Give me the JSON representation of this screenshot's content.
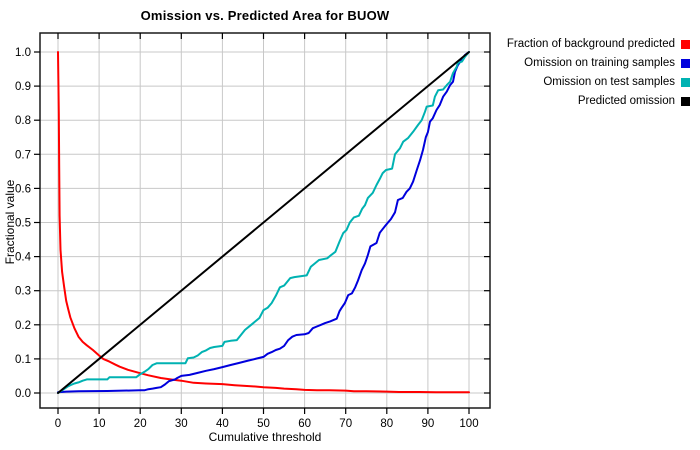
{
  "chart_data": {
    "type": "line",
    "title": "Omission vs. Predicted Area for BUOW",
    "xlabel": "Cumulative threshold",
    "ylabel": "Fractional value",
    "xlim": [
      0,
      100
    ],
    "ylim": [
      0,
      1
    ],
    "grid": true,
    "legend_position": "outside-top-right",
    "xticks": [
      0,
      10,
      20,
      30,
      40,
      50,
      60,
      70,
      80,
      90,
      100
    ],
    "xtick_labels": [
      "0",
      "10",
      "20",
      "30",
      "40",
      "50",
      "60",
      "70",
      "80",
      "90",
      "100"
    ],
    "yticks": [
      0,
      0.1,
      0.2,
      0.3,
      0.4,
      0.5,
      0.6,
      0.7,
      0.8,
      0.9,
      1.0
    ],
    "ytick_labels": [
      "0.0",
      "0.1",
      "0.2",
      "0.3",
      "0.4",
      "0.5",
      "0.6",
      "0.7",
      "0.8",
      "0.9",
      "1.0"
    ],
    "series": [
      {
        "name": "Fraction of background predicted",
        "color": "#ff0000",
        "points": [
          [
            0,
            1
          ],
          [
            0.2,
            0.82
          ],
          [
            0.3,
            0.66
          ],
          [
            0.4,
            0.52
          ],
          [
            0.6,
            0.42
          ],
          [
            1,
            0.355
          ],
          [
            1.5,
            0.31
          ],
          [
            2,
            0.27
          ],
          [
            2.5,
            0.245
          ],
          [
            3,
            0.222
          ],
          [
            4,
            0.19
          ],
          [
            5,
            0.165
          ],
          [
            6,
            0.15
          ],
          [
            7,
            0.14
          ],
          [
            8.5,
            0.126
          ],
          [
            10,
            0.11
          ],
          [
            11,
            0.1
          ],
          [
            12.5,
            0.092
          ],
          [
            14,
            0.083
          ],
          [
            15,
            0.077
          ],
          [
            17,
            0.068
          ],
          [
            20,
            0.058
          ],
          [
            22,
            0.052
          ],
          [
            25,
            0.044
          ],
          [
            28,
            0.039
          ],
          [
            30,
            0.036
          ],
          [
            33,
            0.03
          ],
          [
            36,
            0.028
          ],
          [
            40,
            0.026
          ],
          [
            43,
            0.023
          ],
          [
            45,
            0.021
          ],
          [
            48,
            0.019
          ],
          [
            50,
            0.017
          ],
          [
            53,
            0.015
          ],
          [
            55,
            0.013
          ],
          [
            58,
            0.011
          ],
          [
            60,
            0.009
          ],
          [
            63,
            0.008
          ],
          [
            66,
            0.008
          ],
          [
            70,
            0.007
          ],
          [
            72,
            0.005
          ],
          [
            75,
            0.005
          ],
          [
            80,
            0.004
          ],
          [
            83,
            0.003
          ],
          [
            88,
            0.003
          ],
          [
            92,
            0.002
          ],
          [
            100,
            0.002
          ]
        ]
      },
      {
        "name": "Omission on training samples",
        "color": "#0000dd",
        "points": [
          [
            0,
            0.002
          ],
          [
            2,
            0.004
          ],
          [
            5,
            0.005
          ],
          [
            12,
            0.006
          ],
          [
            20,
            0.008
          ],
          [
            21,
            0.008
          ],
          [
            22,
            0.011
          ],
          [
            23,
            0.013
          ],
          [
            24,
            0.015
          ],
          [
            25,
            0.017
          ],
          [
            26,
            0.025
          ],
          [
            27,
            0.035
          ],
          [
            28.5,
            0.04
          ],
          [
            29,
            0.044
          ],
          [
            30,
            0.05
          ],
          [
            32,
            0.053
          ],
          [
            34,
            0.059
          ],
          [
            36,
            0.065
          ],
          [
            38,
            0.07
          ],
          [
            40,
            0.076
          ],
          [
            42,
            0.082
          ],
          [
            44,
            0.088
          ],
          [
            46,
            0.094
          ],
          [
            48,
            0.1
          ],
          [
            50,
            0.106
          ],
          [
            51,
            0.115
          ],
          [
            52,
            0.12
          ],
          [
            53,
            0.126
          ],
          [
            54,
            0.13
          ],
          [
            55,
            0.138
          ],
          [
            56,
            0.155
          ],
          [
            57,
            0.165
          ],
          [
            58,
            0.17
          ],
          [
            60,
            0.172
          ],
          [
            61,
            0.176
          ],
          [
            62,
            0.19
          ],
          [
            63,
            0.195
          ],
          [
            64,
            0.2
          ],
          [
            65,
            0.205
          ],
          [
            66.2,
            0.21
          ],
          [
            67.8,
            0.218
          ],
          [
            68.5,
            0.24
          ],
          [
            69,
            0.25
          ],
          [
            69.8,
            0.264
          ],
          [
            70.6,
            0.287
          ],
          [
            71.5,
            0.292
          ],
          [
            72.3,
            0.31
          ],
          [
            73,
            0.33
          ],
          [
            73.9,
            0.36
          ],
          [
            74.7,
            0.38
          ],
          [
            75.4,
            0.405
          ],
          [
            76,
            0.43
          ],
          [
            77.5,
            0.44
          ],
          [
            78.3,
            0.47
          ],
          [
            79.6,
            0.49
          ],
          [
            80.3,
            0.5
          ],
          [
            81,
            0.51
          ],
          [
            82,
            0.53
          ],
          [
            82.7,
            0.566
          ],
          [
            83.9,
            0.572
          ],
          [
            84.8,
            0.59
          ],
          [
            85.6,
            0.6
          ],
          [
            86.4,
            0.62
          ],
          [
            87.3,
            0.654
          ],
          [
            88.1,
            0.683
          ],
          [
            88.8,
            0.713
          ],
          [
            89.5,
            0.75
          ],
          [
            90,
            0.765
          ],
          [
            90.5,
            0.796
          ],
          [
            91.2,
            0.806
          ],
          [
            92.1,
            0.83
          ],
          [
            92.9,
            0.845
          ],
          [
            93.7,
            0.869
          ],
          [
            94.6,
            0.884
          ],
          [
            95.4,
            0.903
          ],
          [
            96.1,
            0.913
          ],
          [
            96.6,
            0.942
          ],
          [
            97.3,
            0.962
          ],
          [
            98.2,
            0.977
          ],
          [
            99,
            0.991
          ],
          [
            100,
            1
          ]
        ]
      },
      {
        "name": "Omission on test samples",
        "color": "#00b2b2",
        "points": [
          [
            0,
            0
          ],
          [
            0.5,
            0.004
          ],
          [
            1,
            0.008
          ],
          [
            1.5,
            0.012
          ],
          [
            2,
            0.016
          ],
          [
            2.5,
            0.02
          ],
          [
            3,
            0.023
          ],
          [
            4,
            0.028
          ],
          [
            5,
            0.031
          ],
          [
            6,
            0.036
          ],
          [
            7,
            0.04
          ],
          [
            12,
            0.04
          ],
          [
            12.5,
            0.046
          ],
          [
            19,
            0.046
          ],
          [
            20,
            0.055
          ],
          [
            21,
            0.062
          ],
          [
            22,
            0.07
          ],
          [
            23,
            0.082
          ],
          [
            24,
            0.087
          ],
          [
            31,
            0.087
          ],
          [
            31.6,
            0.102
          ],
          [
            33,
            0.104
          ],
          [
            34,
            0.11
          ],
          [
            35,
            0.12
          ],
          [
            36,
            0.125
          ],
          [
            37,
            0.132
          ],
          [
            38,
            0.135
          ],
          [
            40,
            0.138
          ],
          [
            40.5,
            0.15
          ],
          [
            42,
            0.153
          ],
          [
            43.5,
            0.155
          ],
          [
            44.5,
            0.17
          ],
          [
            45.5,
            0.185
          ],
          [
            47,
            0.2
          ],
          [
            48,
            0.21
          ],
          [
            49,
            0.22
          ],
          [
            50,
            0.243
          ],
          [
            51,
            0.25
          ],
          [
            52,
            0.264
          ],
          [
            53,
            0.285
          ],
          [
            54,
            0.31
          ],
          [
            55,
            0.315
          ],
          [
            56.5,
            0.337
          ],
          [
            57.5,
            0.34
          ],
          [
            60.5,
            0.345
          ],
          [
            61.5,
            0.37
          ],
          [
            62,
            0.375
          ],
          [
            63.5,
            0.39
          ],
          [
            65.5,
            0.395
          ],
          [
            66.5,
            0.405
          ],
          [
            67.5,
            0.414
          ],
          [
            68.5,
            0.444
          ],
          [
            69.4,
            0.469
          ],
          [
            70.2,
            0.478
          ],
          [
            71,
            0.5
          ],
          [
            72,
            0.515
          ],
          [
            73.2,
            0.52
          ],
          [
            74,
            0.54
          ],
          [
            74.7,
            0.551
          ],
          [
            75.4,
            0.572
          ],
          [
            76.6,
            0.587
          ],
          [
            77.5,
            0.61
          ],
          [
            78.3,
            0.628
          ],
          [
            79,
            0.645
          ],
          [
            79.8,
            0.654
          ],
          [
            81.3,
            0.658
          ],
          [
            82,
            0.7
          ],
          [
            83.2,
            0.718
          ],
          [
            84,
            0.737
          ],
          [
            85.2,
            0.748
          ],
          [
            86.4,
            0.766
          ],
          [
            87.6,
            0.786
          ],
          [
            88.5,
            0.8
          ],
          [
            89.3,
            0.825
          ],
          [
            89.7,
            0.84
          ],
          [
            91.2,
            0.843
          ],
          [
            91.7,
            0.869
          ],
          [
            92.5,
            0.888
          ],
          [
            93.7,
            0.89
          ],
          [
            94.6,
            0.903
          ],
          [
            95.4,
            0.913
          ],
          [
            96.1,
            0.938
          ],
          [
            97,
            0.957
          ],
          [
            97.3,
            0.968
          ],
          [
            98.3,
            0.972
          ],
          [
            99,
            0.986
          ],
          [
            100,
            1
          ]
        ]
      },
      {
        "name": "Predicted omission",
        "color": "#000000",
        "points": [
          [
            0,
            0
          ],
          [
            100,
            1
          ]
        ]
      }
    ]
  },
  "colors": {
    "background": "#ffffff",
    "gridline": "#c8c8c8",
    "plot_border": "#1a1a1a",
    "text": "#000000"
  }
}
